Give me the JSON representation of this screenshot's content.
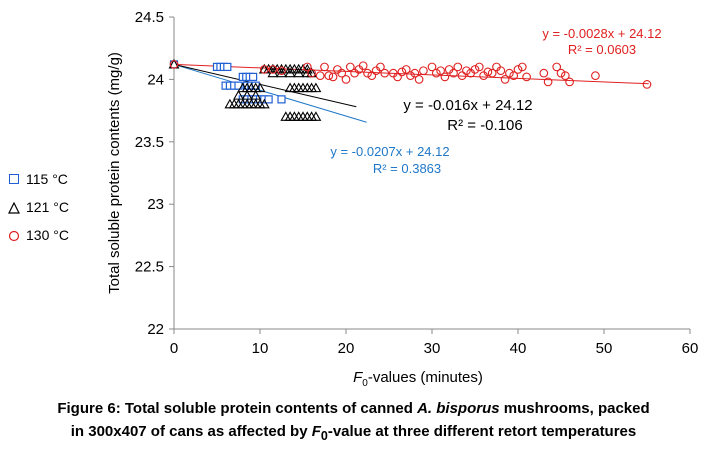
{
  "chart_data": {
    "type": "scatter",
    "title": "",
    "xlabel": {
      "prefix": "F",
      "sub": "0",
      "suffix": "-values (minutes)"
    },
    "ylabel": "Total soluble protein contents (mg/g)",
    "xlim": [
      0,
      60
    ],
    "ylim": [
      22,
      24.5
    ],
    "xticks": [
      "0",
      "10",
      "20",
      "30",
      "40",
      "50",
      "60"
    ],
    "yticks": [
      "22",
      "22.5",
      "23",
      "23.5",
      "24",
      "24.5"
    ],
    "grid": false,
    "legend_position": "left",
    "series": [
      {
        "name": "115 °C",
        "marker": "square",
        "color": "#1f5fd6",
        "trend": {
          "slope": -0.0207,
          "intercept": 24.12,
          "x_end": 22.4,
          "equation": "y = -0.0207x + 24.12",
          "r2": "R² = 0.3863",
          "color": "#1f78c8"
        },
        "points": [
          [
            0,
            24.12
          ],
          [
            5,
            24.1
          ],
          [
            5.4,
            24.1
          ],
          [
            5.8,
            24.1
          ],
          [
            6.2,
            24.1
          ],
          [
            6,
            23.95
          ],
          [
            6.5,
            23.95
          ],
          [
            7,
            23.95
          ],
          [
            7.5,
            23.95
          ],
          [
            8,
            24.02
          ],
          [
            8.4,
            24.02
          ],
          [
            8.8,
            24.02
          ],
          [
            9.2,
            24.02
          ],
          [
            8.5,
            23.95
          ],
          [
            9,
            23.95
          ],
          [
            9.5,
            23.95
          ],
          [
            8,
            23.84
          ],
          [
            8.5,
            23.84
          ],
          [
            9,
            23.84
          ],
          [
            9.5,
            23.84
          ],
          [
            10,
            23.84
          ],
          [
            10.5,
            23.84
          ],
          [
            11,
            23.84
          ],
          [
            12.5,
            23.84
          ]
        ]
      },
      {
        "name": "121 °C",
        "marker": "triangle",
        "color": "#000000",
        "trend": {
          "slope": -0.016,
          "intercept": 24.12,
          "x_end": 21.2,
          "equation": "y = -0.016x + 24.12",
          "r2": "R² = -0.106",
          "color": "#000000"
        },
        "points": [
          [
            0,
            24.12
          ],
          [
            6.5,
            23.8
          ],
          [
            7,
            23.8
          ],
          [
            7.5,
            23.8
          ],
          [
            8,
            23.8
          ],
          [
            8.5,
            23.8
          ],
          [
            9,
            23.8
          ],
          [
            9.5,
            23.8
          ],
          [
            10,
            23.8
          ],
          [
            10.5,
            23.8
          ],
          [
            7.5,
            23.87
          ],
          [
            8.5,
            23.87
          ],
          [
            9.5,
            23.87
          ],
          [
            10.5,
            24.08
          ],
          [
            11,
            24.08
          ],
          [
            11.5,
            24.08
          ],
          [
            12,
            24.08
          ],
          [
            12.5,
            24.08
          ],
          [
            13,
            24.08
          ],
          [
            13.5,
            24.08
          ],
          [
            14,
            24.08
          ],
          [
            14.5,
            24.08
          ],
          [
            15,
            24.08
          ],
          [
            15.5,
            24.08
          ],
          [
            11.5,
            24.05
          ],
          [
            12.5,
            24.05
          ],
          [
            13.5,
            24.05
          ],
          [
            14.5,
            24.05
          ],
          [
            15.5,
            24.05
          ],
          [
            16,
            24.05
          ],
          [
            14,
            23.93
          ],
          [
            14.5,
            23.93
          ],
          [
            15,
            23.93
          ],
          [
            15.5,
            23.93
          ],
          [
            16,
            23.93
          ],
          [
            16.5,
            23.93
          ],
          [
            13.5,
            23.93
          ],
          [
            8,
            23.93
          ],
          [
            8.5,
            23.93
          ],
          [
            9,
            23.93
          ],
          [
            9.5,
            23.93
          ],
          [
            10,
            23.93
          ],
          [
            13,
            23.7
          ],
          [
            13.5,
            23.7
          ],
          [
            14,
            23.7
          ],
          [
            14.5,
            23.7
          ],
          [
            15,
            23.7
          ],
          [
            15.5,
            23.7
          ],
          [
            16,
            23.7
          ],
          [
            16.5,
            23.7
          ]
        ]
      },
      {
        "name": "130 °C",
        "marker": "circle",
        "color": "#e02020",
        "trend": {
          "slope": -0.0028,
          "intercept": 24.12,
          "x_end": 55.2,
          "equation": "y = -0.0028x + 24.12",
          "r2": "R² = 0.0603",
          "color": "#e02020"
        },
        "points": [
          [
            0,
            24.12
          ],
          [
            10.5,
            24.08
          ],
          [
            11.5,
            24.08
          ],
          [
            12.5,
            24.07
          ],
          [
            15.5,
            24.1
          ],
          [
            16,
            24.05
          ],
          [
            17,
            24.03
          ],
          [
            17.5,
            24.1
          ],
          [
            18,
            24.03
          ],
          [
            18.5,
            24.02
          ],
          [
            19,
            24.08
          ],
          [
            19.5,
            24.05
          ],
          [
            20,
            24
          ],
          [
            20.5,
            24.1
          ],
          [
            21,
            24.05
          ],
          [
            21.5,
            24.08
          ],
          [
            22,
            24.11
          ],
          [
            22.5,
            24.05
          ],
          [
            23,
            24.03
          ],
          [
            23.5,
            24.07
          ],
          [
            24,
            24.1
          ],
          [
            24.5,
            24.05
          ],
          [
            25.5,
            24.05
          ],
          [
            26,
            24.02
          ],
          [
            26.5,
            24.06
          ],
          [
            27,
            24.08
          ],
          [
            27.5,
            24.03
          ],
          [
            28,
            24.05
          ],
          [
            28.5,
            24
          ],
          [
            29,
            24.07
          ],
          [
            30,
            24.1
          ],
          [
            30.5,
            24.05
          ],
          [
            31,
            24.07
          ],
          [
            31.5,
            24.02
          ],
          [
            32,
            24.08
          ],
          [
            32.5,
            24.05
          ],
          [
            33,
            24.1
          ],
          [
            33.5,
            24.03
          ],
          [
            34,
            24.07
          ],
          [
            34.5,
            24.05
          ],
          [
            35,
            24.08
          ],
          [
            35.5,
            24.1
          ],
          [
            36,
            24.03
          ],
          [
            36.5,
            24.06
          ],
          [
            37,
            24.05
          ],
          [
            37.5,
            24.1
          ],
          [
            38,
            24.07
          ],
          [
            38.5,
            24
          ],
          [
            39,
            24.05
          ],
          [
            39.5,
            24.03
          ],
          [
            40,
            24.08
          ],
          [
            40.5,
            24.1
          ],
          [
            41,
            24.02
          ],
          [
            43,
            24.05
          ],
          [
            43.5,
            23.98
          ],
          [
            44.5,
            24.1
          ],
          [
            45,
            24.05
          ],
          [
            45.5,
            24.03
          ],
          [
            46,
            23.98
          ],
          [
            49,
            24.03
          ],
          [
            55,
            23.96
          ]
        ]
      }
    ]
  },
  "caption": {
    "line1_pre": "Figure 6: Total soluble protein contents of canned ",
    "line1_italic": "A. bisporus",
    "line1_post": " mushrooms, packed",
    "line2_pre": "in 300x407 of cans as affected by ",
    "line2_f": "F",
    "line2_sub": "0",
    "line2_post": "-value at three different retort temperatures"
  }
}
